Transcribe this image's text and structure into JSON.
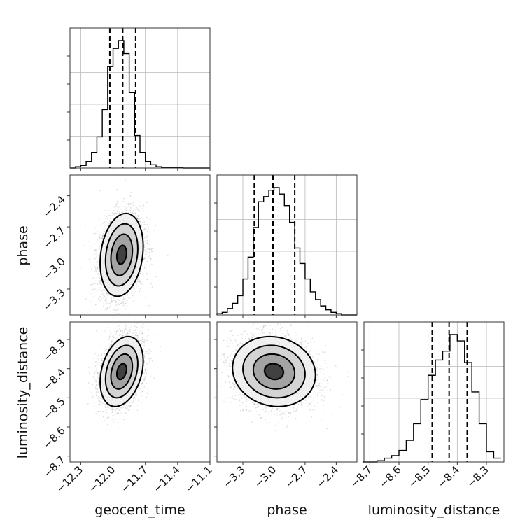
{
  "chart_data": {
    "type": "corner",
    "parameters": [
      {
        "name": "geocent_time",
        "label": "geocent_time",
        "range": [
          -12.4,
          -11.1
        ],
        "ticks": [
          -12.3,
          -12.0,
          -11.7,
          -11.4,
          -11.1
        ],
        "tick_labels": [
          "−12.3",
          "−12.0",
          "−11.7",
          "−11.4",
          "−11.1"
        ],
        "quantiles": [
          -12.03,
          -11.91,
          -11.79
        ],
        "hist_x": [
          -12.375,
          -12.325,
          -12.275,
          -12.225,
          -12.175,
          -12.125,
          -12.075,
          -12.025,
          -11.975,
          -11.925,
          -11.875,
          -11.825,
          -11.775,
          -11.725,
          -11.675,
          -11.625,
          -11.575,
          -11.525,
          -11.475,
          -11.425,
          -11.375,
          -11.325,
          -11.275,
          -11.225,
          -11.175,
          -11.125
        ],
        "hist_counts": [
          0,
          1,
          2,
          5,
          12,
          24,
          45,
          78,
          92,
          98,
          88,
          58,
          25,
          12,
          5,
          2.5,
          1,
          0.5,
          0.3,
          0.3,
          0.2,
          0,
          0,
          0,
          0,
          0
        ]
      },
      {
        "name": "phase",
        "label": "phase",
        "range": [
          -3.55,
          -2.2
        ],
        "ticks": [
          -3.3,
          -3.0,
          -2.7,
          -2.4
        ],
        "tick_labels": [
          "−3.3",
          "−3.0",
          "−2.7",
          "−2.4"
        ],
        "quantiles": [
          -3.19,
          -3.01,
          -2.8
        ],
        "hist_x": [
          -3.525,
          -3.475,
          -3.425,
          -3.375,
          -3.325,
          -3.275,
          -3.225,
          -3.175,
          -3.125,
          -3.075,
          -3.025,
          -2.975,
          -2.925,
          -2.875,
          -2.825,
          -2.775,
          -2.725,
          -2.675,
          -2.625,
          -2.575,
          -2.525,
          -2.475,
          -2.425,
          -2.375,
          -2.325,
          -2.275,
          -2.225
        ],
        "hist_counts": [
          1,
          2,
          5,
          9,
          15,
          28,
          45,
          68,
          88,
          92,
          97,
          99,
          94,
          85,
          72,
          52,
          40,
          28,
          18,
          12,
          7,
          4,
          2,
          1,
          0,
          0,
          0
        ]
      },
      {
        "name": "luminosity_distance",
        "label": "luminosity_distance",
        "range": [
          -8.72,
          -8.24
        ],
        "ticks": [
          -8.7,
          -8.6,
          -8.5,
          -8.4,
          -8.3
        ],
        "tick_labels": [
          "−8.7",
          "−8.6",
          "−8.5",
          "−8.4",
          "−8.3"
        ],
        "quantiles": [
          -8.486,
          -8.428,
          -8.366
        ],
        "hist_x": [
          -8.7125,
          -8.6875,
          -8.6625,
          -8.6375,
          -8.6125,
          -8.5875,
          -8.5625,
          -8.5375,
          -8.5125,
          -8.4875,
          -8.4625,
          -8.4375,
          -8.4125,
          -8.3875,
          -8.3625,
          -8.3375,
          -8.3125,
          -8.2875,
          -8.2625
        ],
        "hist_counts": [
          0,
          0,
          1,
          3,
          5,
          9,
          17,
          30,
          49,
          68,
          80,
          87,
          100,
          95,
          78,
          55,
          30,
          8,
          3
        ]
      }
    ],
    "pairs": [
      {
        "x": "geocent_time",
        "y": "phase",
        "center": [
          -11.92,
          -2.97
        ],
        "sigma": [
          0.1,
          0.2
        ],
        "rho": 0.2
      },
      {
        "x": "geocent_time",
        "y": "luminosity_distance",
        "center": [
          -11.92,
          -8.41
        ],
        "sigma": [
          0.1,
          0.06
        ],
        "rho": 0.3
      },
      {
        "x": "phase",
        "y": "luminosity_distance",
        "center": [
          -3.0,
          -8.41
        ],
        "sigma": [
          0.2,
          0.06
        ],
        "rho": -0.1
      }
    ],
    "grid": true,
    "xlabel_rotation_deg": 45
  }
}
